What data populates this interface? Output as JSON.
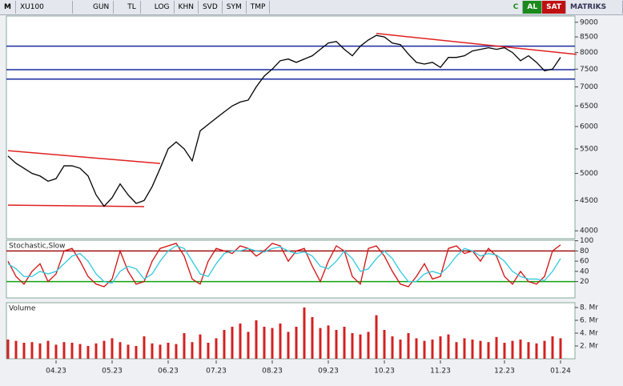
{
  "toolbar": {
    "logo": "M",
    "symbol": "XU100",
    "buttons": [
      "GUN",
      "TL",
      "LOG",
      "KHN",
      "SVD",
      "SYM",
      "TMP"
    ],
    "c": "C",
    "buy": "AL",
    "sell": "SAT",
    "brand": "MATRIKS"
  },
  "chart_data": [
    {
      "type": "line",
      "log_scale": true,
      "color": "#000000",
      "categories": [
        null,
        null,
        null,
        null,
        null,
        null,
        "04.23",
        null,
        null,
        null,
        null,
        null,
        null,
        "05.23",
        null,
        null,
        null,
        null,
        null,
        null,
        "06.23",
        null,
        null,
        null,
        null,
        null,
        "07.23",
        null,
        null,
        null,
        null,
        null,
        null,
        "08.23",
        null,
        null,
        null,
        null,
        null,
        null,
        "09.23",
        null,
        null,
        null,
        null,
        null,
        null,
        "10.23",
        null,
        null,
        null,
        null,
        null,
        null,
        "11.23",
        null,
        null,
        null,
        null,
        null,
        null,
        null,
        "12.23",
        null,
        null,
        null,
        null,
        null,
        null,
        "01.24"
      ],
      "values": [
        5350,
        5200,
        5100,
        5000,
        4950,
        4850,
        4900,
        5150,
        5150,
        5100,
        4950,
        4600,
        4400,
        4550,
        4800,
        4600,
        4450,
        4500,
        4750,
        5100,
        5500,
        5650,
        5500,
        5250,
        5900,
        6050,
        6200,
        6350,
        6500,
        6600,
        6650,
        7000,
        7300,
        7500,
        7750,
        7800,
        7700,
        7800,
        7900,
        8100,
        8300,
        8350,
        8100,
        7900,
        8200,
        8400,
        8550,
        8500,
        8300,
        8250,
        7950,
        7700,
        7650,
        7700,
        7550,
        7850,
        7850,
        7900,
        8050,
        8100,
        8150,
        8100,
        8150,
        8000,
        7750,
        7900,
        7700,
        7450,
        7500,
        7850
      ],
      "ylim": [
        3880,
        9220
      ],
      "yticks": [
        4000,
        4500,
        5000,
        5500,
        6000,
        6500,
        7000,
        7500,
        8000,
        8500,
        9000
      ],
      "hlines": [
        {
          "value": 8200,
          "color": "#1a2aa0"
        },
        {
          "value": 7485,
          "color": "#1a2aa0"
        },
        {
          "value": 7215,
          "color": "#1a2aa0"
        }
      ],
      "trendlines": [
        {
          "points": [
            [
              0,
              5462
            ],
            [
              19,
              5197
            ]
          ],
          "color": "#e02020"
        },
        {
          "points": [
            [
              0,
              4420
            ],
            [
              17,
              4395
            ]
          ],
          "color": "#e02020"
        },
        {
          "points": [
            [
              46,
              8615
            ],
            [
              71,
              7943
            ]
          ],
          "color": "#e02020"
        }
      ]
    },
    {
      "type": "line",
      "title": "Stochastic,Slow",
      "series": [
        {
          "color": "#d01010",
          "values": [
            60,
            30,
            15,
            40,
            55,
            20,
            35,
            80,
            85,
            60,
            30,
            15,
            10,
            25,
            80,
            40,
            15,
            20,
            60,
            85,
            90,
            95,
            70,
            25,
            15,
            60,
            85,
            80,
            75,
            90,
            85,
            70,
            80,
            95,
            90,
            60,
            80,
            85,
            50,
            20,
            60,
            90,
            80,
            30,
            15,
            85,
            90,
            70,
            40,
            15,
            10,
            30,
            55,
            25,
            30,
            85,
            90,
            75,
            80,
            60,
            85,
            70,
            30,
            15,
            40,
            20,
            15,
            30,
            80,
            92
          ]
        },
        {
          "color": "#30c8e0",
          "values": [
            55,
            45,
            30,
            30,
            40,
            35,
            40,
            55,
            70,
            75,
            60,
            35,
            20,
            17,
            40,
            50,
            45,
            25,
            35,
            60,
            80,
            90,
            85,
            60,
            35,
            30,
            55,
            75,
            80,
            80,
            85,
            80,
            78,
            85,
            88,
            80,
            75,
            78,
            70,
            50,
            45,
            60,
            80,
            65,
            40,
            45,
            65,
            80,
            65,
            40,
            20,
            20,
            35,
            40,
            35,
            50,
            70,
            85,
            80,
            70,
            75,
            72,
            60,
            40,
            30,
            25,
            25,
            22,
            40,
            65
          ]
        }
      ],
      "ylim": [
        -12,
        101
      ],
      "yticks": [
        20,
        40,
        60,
        80,
        100
      ],
      "hlines": [
        {
          "value": 80,
          "color": "#a01010"
        },
        {
          "value": 20,
          "color": "#10a010"
        }
      ]
    },
    {
      "type": "bar",
      "title": "Volume",
      "color": "#d42020",
      "values": [
        3,
        2.8,
        2.5,
        2.6,
        2.4,
        2.8,
        2.2,
        2.6,
        2.5,
        2.3,
        2.0,
        2.4,
        2.8,
        3.2,
        2.6,
        2.2,
        2.0,
        3.5,
        2.4,
        2.2,
        2.5,
        2.3,
        4.0,
        2.6,
        3.8,
        2.5,
        3.2,
        4.5,
        5.0,
        5.5,
        4.2,
        6.0,
        5.0,
        4.8,
        5.5,
        4.2,
        5.0,
        8.0,
        6.5,
        4.8,
        5.2,
        4.5,
        5.0,
        4.0,
        3.8,
        4.2,
        6.8,
        4.5,
        3.5,
        3.0,
        4.0,
        3.2,
        2.8,
        3.0,
        3.5,
        3.8,
        2.6,
        3.2,
        3.0,
        2.8,
        2.6,
        3.4,
        2.5,
        2.8,
        3.0,
        2.6,
        2.4,
        2.8,
        3.5,
        3.2
      ],
      "ylim": [
        0,
        8.75
      ],
      "yticks": [
        {
          "value": 2,
          "label": "2. Mr"
        },
        {
          "value": 4,
          "label": "4. Mr"
        },
        {
          "value": 6,
          "label": "6. Mr"
        },
        {
          "value": 8,
          "label": "8. Mr"
        }
      ]
    }
  ]
}
